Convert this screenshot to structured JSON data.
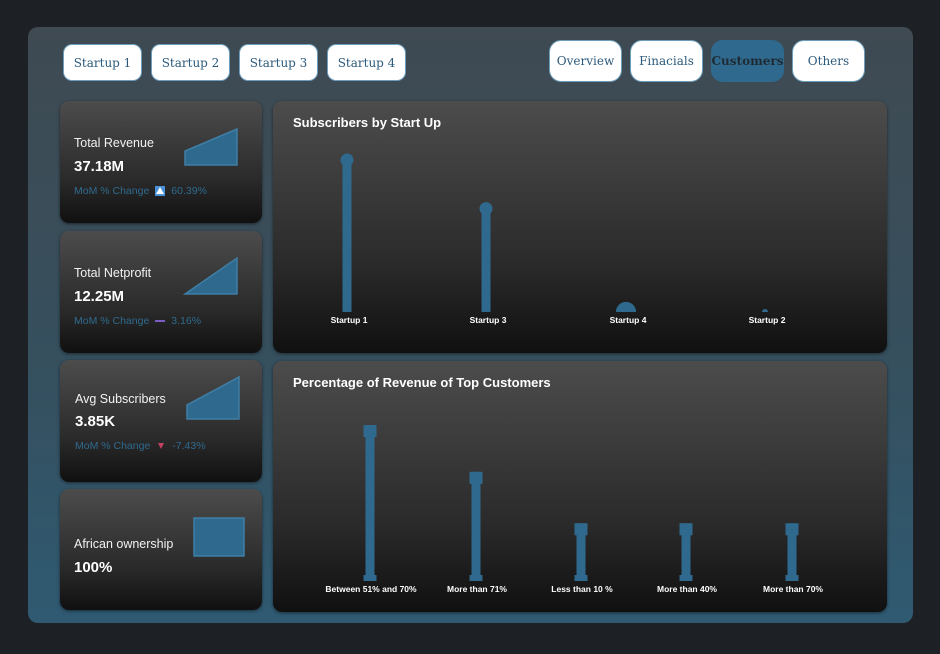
{
  "startup_buttons": [
    {
      "label": "Startup 1"
    },
    {
      "label": "Startup 2"
    },
    {
      "label": "Startup 3"
    },
    {
      "label": "Startup 4"
    }
  ],
  "nav_tabs": [
    {
      "label": "Overview",
      "active": false
    },
    {
      "label": "Finacials",
      "active": false
    },
    {
      "label": "Customers",
      "active": true
    },
    {
      "label": "Others",
      "active": false
    }
  ],
  "kpis": {
    "revenue": {
      "title": "Total Revenue",
      "value": "37.18M",
      "mom_label": "MoM % Change",
      "mom_value": "60.39%",
      "trend": "up-icon"
    },
    "netprofit": {
      "title": "Total Netprofit",
      "value": "12.25M",
      "mom_label": "MoM % Change",
      "mom_value": "3.16%",
      "trend": "flat-icon"
    },
    "subscribers": {
      "title": "Avg Subscribers",
      "value": "3.85K",
      "mom_label": "MoM % Change",
      "mom_value": "-7.43%",
      "trend": "down-icon"
    },
    "ownership": {
      "title": "African ownership",
      "value": "100%"
    }
  },
  "colors": {
    "accent": "#2f6a8e",
    "up": "#4a90d9",
    "flat": "#7b5cc4",
    "down": "#c44060"
  },
  "chart_data": [
    {
      "type": "bar",
      "title": "Subscribers by Start Up",
      "categories": [
        "Startup 1",
        "Startup 3",
        "Startup 4",
        "Startup 2"
      ],
      "values": [
        100,
        68,
        6,
        1
      ],
      "marker": "lollipop"
    },
    {
      "type": "bar",
      "title": "Percentage of Revenue of Top Customers",
      "categories": [
        "Between 51% and 70%",
        "More than 71%",
        "Less than 10 %",
        "More than 40%",
        "More than 70%"
      ],
      "values": [
        100,
        70,
        37,
        37,
        37
      ],
      "marker": "square-cap"
    }
  ]
}
